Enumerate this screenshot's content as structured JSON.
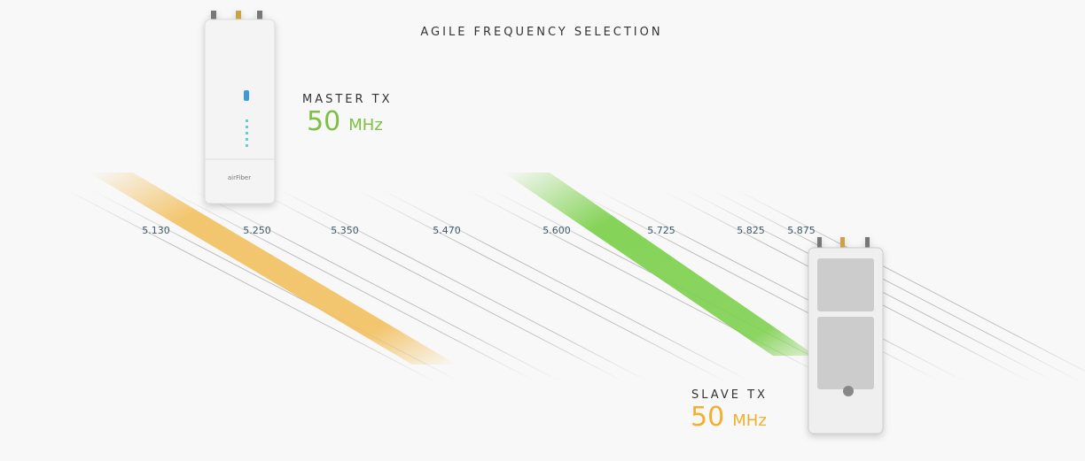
{
  "title": "AGILE FREQUENCY SELECTION",
  "master": {
    "label": "MASTER TX",
    "value": "50",
    "unit": "MHz"
  },
  "slave": {
    "label": "SLAVE TX",
    "value": "50",
    "unit": "MHz"
  },
  "frequencies": [
    "5.130",
    "5.250",
    "5.350",
    "5.470",
    "5.600",
    "5.725",
    "5.825",
    "5.875"
  ]
}
